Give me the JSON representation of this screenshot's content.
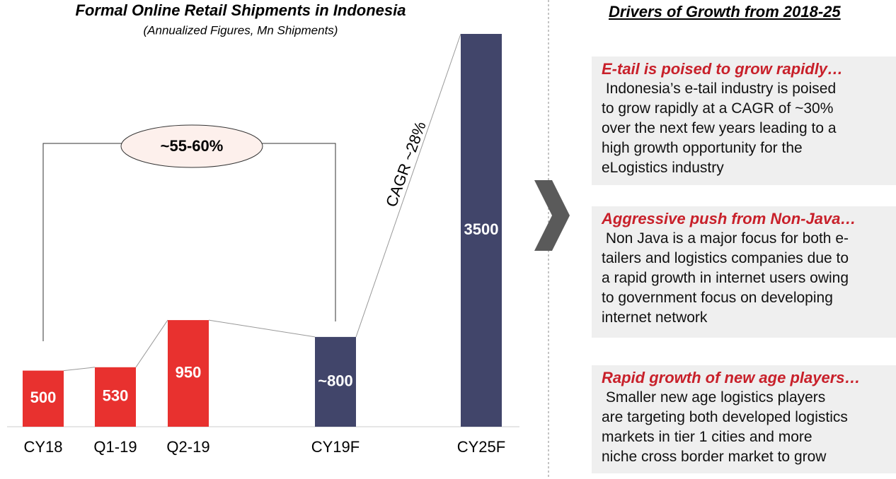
{
  "chart_data": {
    "type": "bar",
    "title": "Formal Online Retail Shipments in Indonesia",
    "subtitle": "(Annualized Figures, Mn Shipments)",
    "categories": [
      "CY18",
      "Q1-19",
      "Q2-19",
      "CY19F",
      "CY25F"
    ],
    "values": [
      500,
      530,
      950,
      800,
      3500
    ],
    "value_labels": [
      "500",
      "530",
      "950",
      "~800",
      "3500"
    ],
    "colors": [
      "#e8312f",
      "#e8312f",
      "#e8312f",
      "#41456a",
      "#41456a"
    ],
    "annotations": [
      "~55-60%",
      "CAGR ~28%"
    ]
  },
  "panel": {
    "title": "Drivers of Growth from 2018-25",
    "items": [
      {
        "heading": "E-tail is poised to grow rapidly…",
        "lines": [
          " Indonesia’s e-tail industry is poised",
          "to grow rapidly at a CAGR of ~30%",
          "over the next few years leading to a",
          "high growth opportunity for the",
          "eLogistics industry"
        ]
      },
      {
        "heading": "Aggressive push from Non-Java…",
        "lines": [
          " Non Java is a major focus for both e-",
          "tailers and logistics companies due to",
          "a rapid growth in internet users owing",
          "to government focus on developing",
          "internet network"
        ]
      },
      {
        "heading": "Rapid growth of new age players…",
        "lines": [
          " Smaller new age logistics players",
          "are targeting both developed logistics",
          "markets in tier 1 cities and more",
          "niche cross border market to grow"
        ]
      }
    ]
  }
}
